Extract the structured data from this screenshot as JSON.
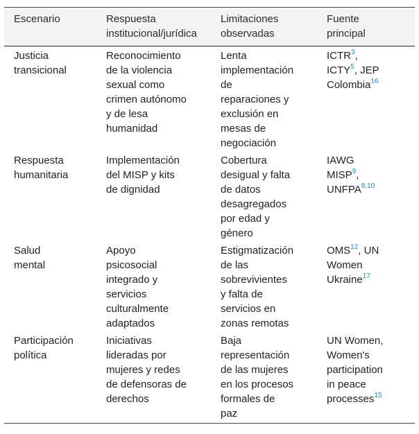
{
  "table": {
    "headers": [
      [
        "Escenario"
      ],
      [
        "Respuesta",
        "institucional/jurídica"
      ],
      [
        "Limitaciones",
        "observadas"
      ],
      [
        "Fuente",
        "principal"
      ]
    ],
    "rows": [
      {
        "escenario": [
          "Justicia",
          "transicional"
        ],
        "respuesta": [
          "Reconocimiento",
          "de la violencia",
          "sexual como",
          "crimen autónomo",
          "y de lesa",
          "humanidad"
        ],
        "limitaciones": [
          "Lenta",
          "implementación",
          "de",
          "reparaciones y",
          "exclusión en",
          "mesas de",
          "negociación"
        ],
        "fuente": [
          [
            {
              "t": "ICTR"
            },
            {
              "ref": "3"
            },
            {
              "t": ","
            }
          ],
          [
            {
              "t": "ICTY"
            },
            {
              "ref": "5"
            },
            {
              "t": ", JEP"
            }
          ],
          [
            {
              "t": "Colombia"
            },
            {
              "ref": "16"
            }
          ]
        ]
      },
      {
        "escenario": [
          "Respuesta",
          "humanitaria"
        ],
        "respuesta": [
          "Implementación",
          "del MISP y kits",
          "de dignidad"
        ],
        "limitaciones": [
          "Cobertura",
          "desigual y falta",
          "de datos",
          "desagregados",
          "por edad y",
          "género"
        ],
        "fuente": [
          [
            {
              "t": "IAWG"
            }
          ],
          [
            {
              "t": "MISP"
            },
            {
              "ref": "9"
            },
            {
              "t": ","
            }
          ],
          [
            {
              "t": "UNFPA"
            },
            {
              "ref": "8,10"
            }
          ]
        ]
      },
      {
        "escenario": [
          "Salud",
          "mental"
        ],
        "respuesta": [
          "Apoyo",
          "psicosocial",
          "integrado y",
          "servicios",
          "culturalmente",
          "adaptados"
        ],
        "limitaciones": [
          "Estigmatización",
          "de las",
          "sobrevivientes",
          "y falta de",
          "servicios en",
          "zonas remotas"
        ],
        "fuente": [
          [
            {
              "t": "OMS"
            },
            {
              "ref": "12"
            },
            {
              "t": ", UN"
            }
          ],
          [
            {
              "t": "Women"
            }
          ],
          [
            {
              "t": "Ukraine"
            },
            {
              "ref": "17"
            }
          ]
        ]
      },
      {
        "escenario": [
          "Participación",
          "política"
        ],
        "respuesta": [
          "Iniciativas",
          "lideradas por",
          "mujeres y redes",
          "de defensoras de",
          "derechos"
        ],
        "limitaciones": [
          "Baja",
          "representación",
          "de las mujeres",
          "en los procesos",
          "formales de",
          "paz"
        ],
        "fuente": [
          [
            {
              "t": "UN Women,"
            }
          ],
          [
            {
              "t": "Women's"
            }
          ],
          [
            {
              "t": "participation"
            }
          ],
          [
            {
              "t": "in peace"
            }
          ],
          [
            {
              "t": "processes"
            },
            {
              "ref": "15"
            }
          ]
        ]
      }
    ]
  }
}
